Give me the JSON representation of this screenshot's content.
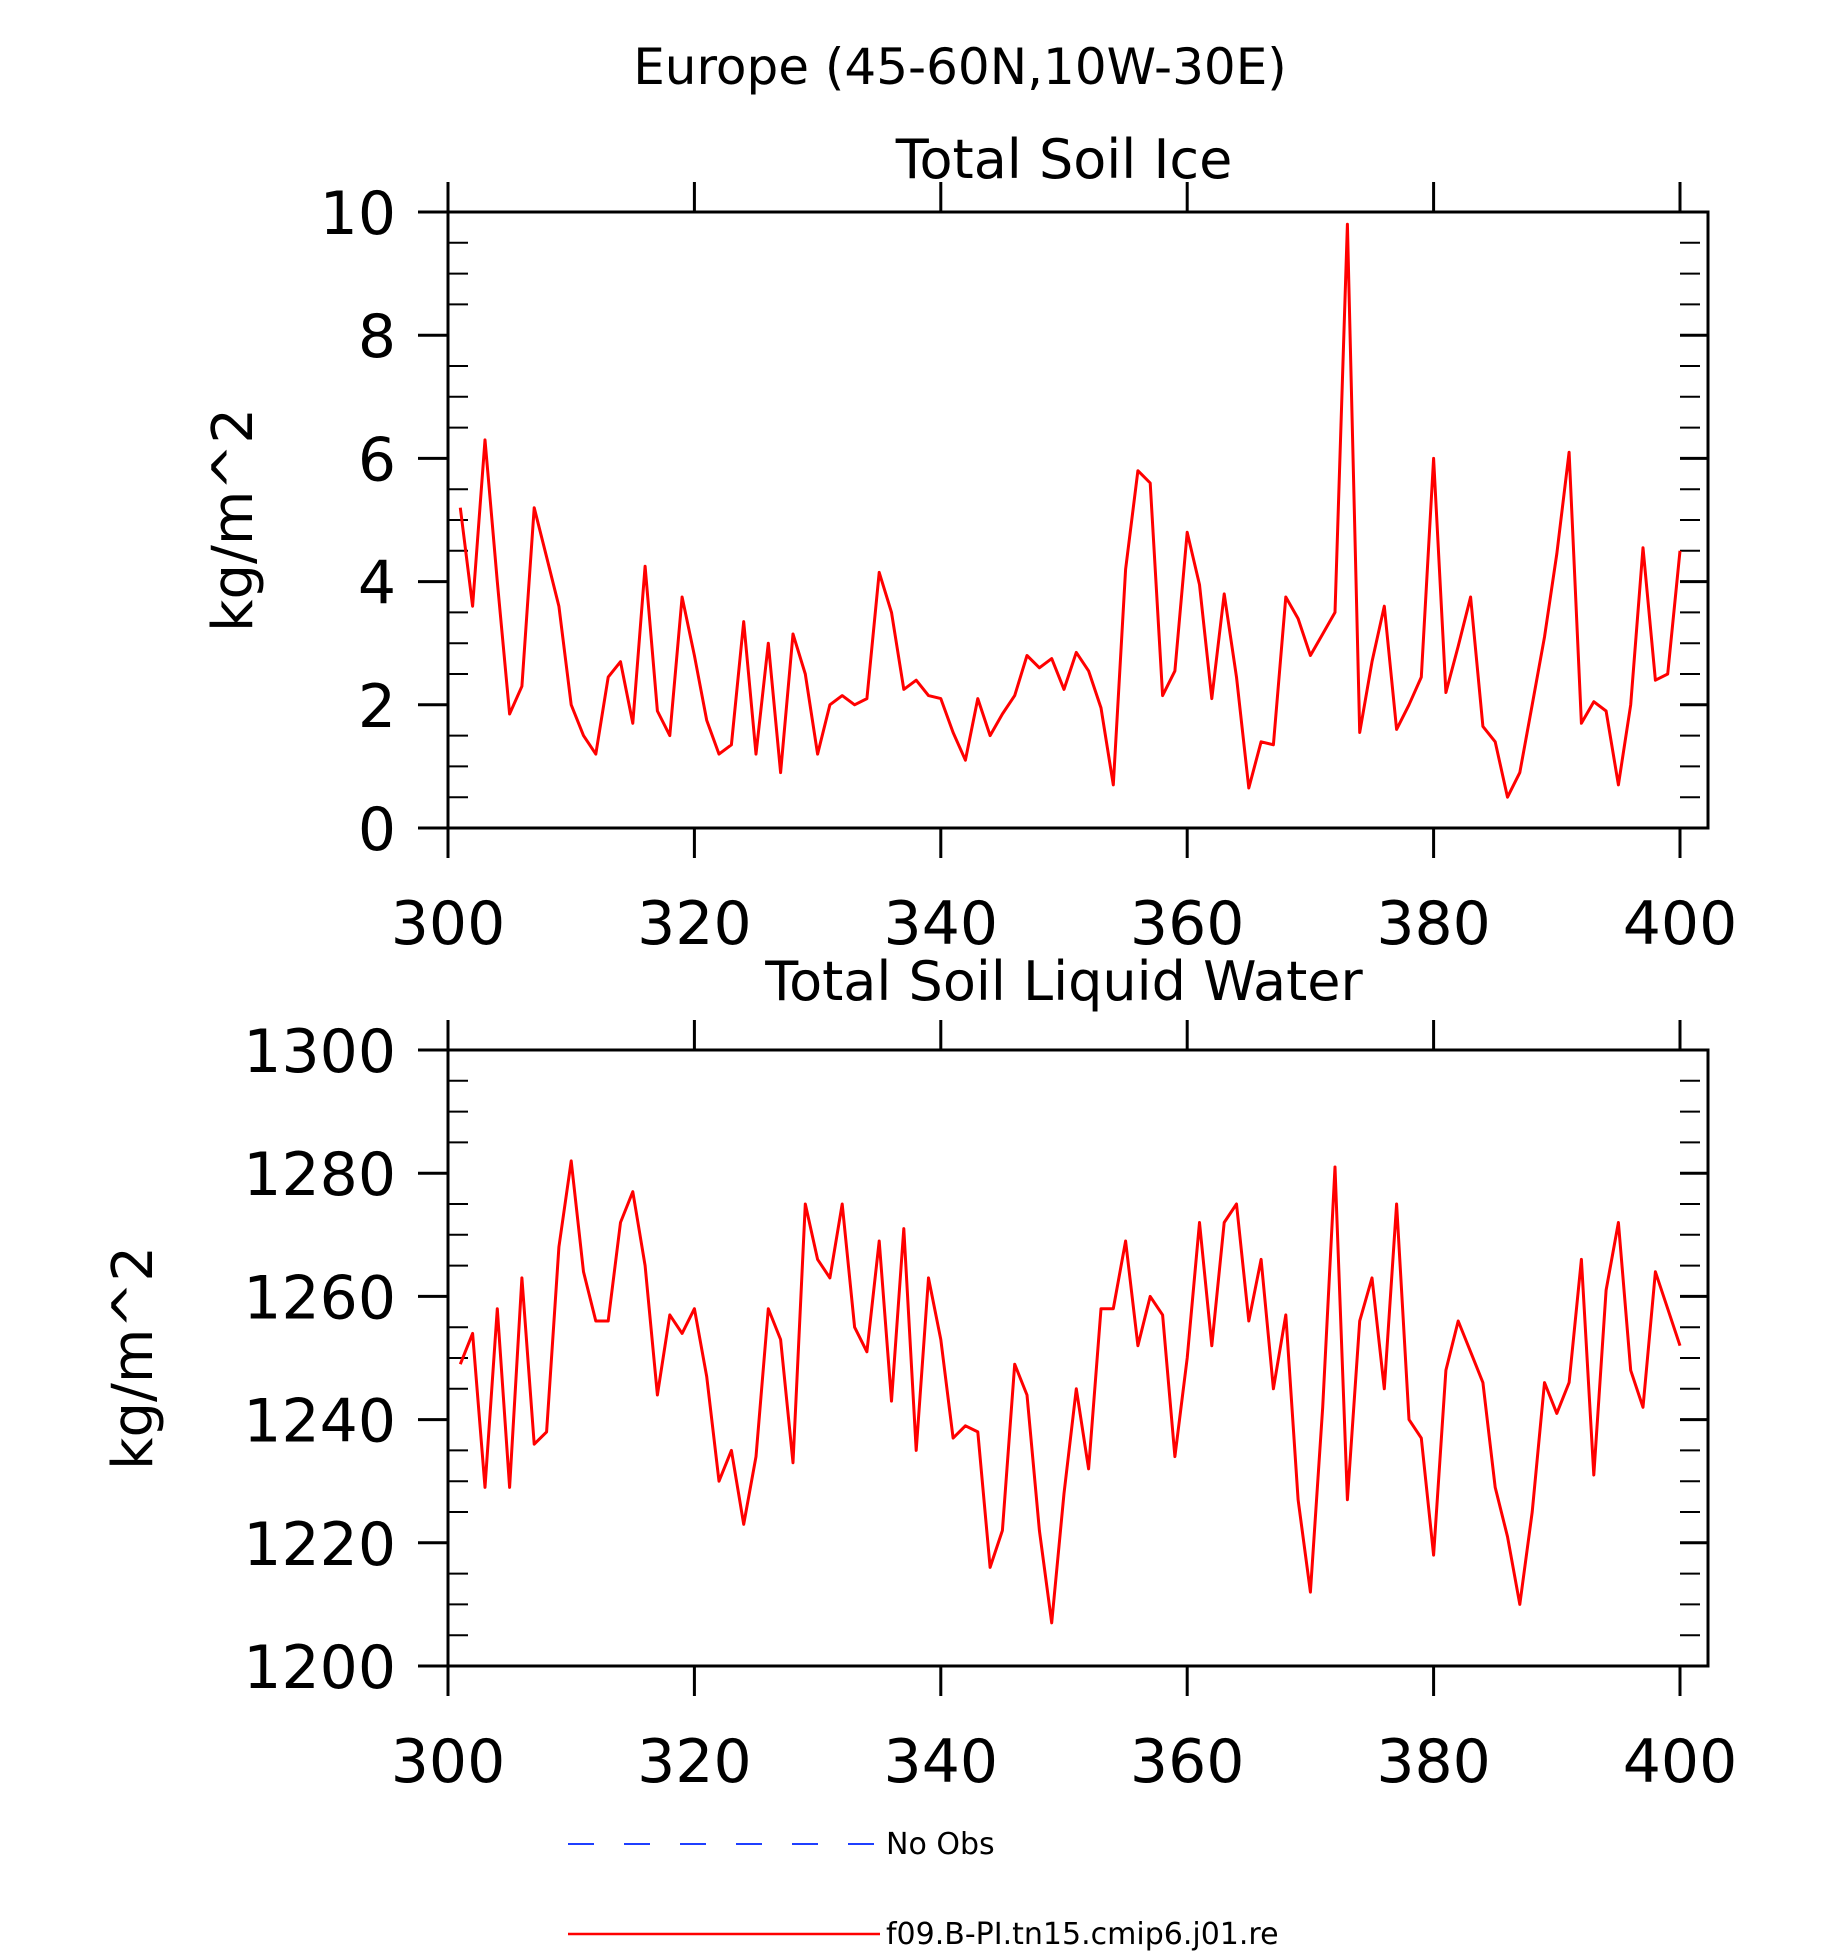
{
  "figure": {
    "title": "Europe (45-60N,10W-30E)"
  },
  "legend": [
    {
      "label": "No Obs",
      "color": "#1f3fff",
      "dash": "dashed"
    },
    {
      "label": "f09.B-PI.tn15.cmip6.j01.re",
      "color": "#ff0000",
      "dash": "solid"
    }
  ],
  "chart_data": [
    {
      "type": "line",
      "title": "Total Soil Ice",
      "xlabel": "",
      "ylabel": "kg/m^2",
      "xlim": [
        300,
        400
      ],
      "ylim": [
        0,
        10
      ],
      "xticks": [
        300,
        320,
        340,
        360,
        380,
        400
      ],
      "yticks": [
        0,
        2,
        4,
        6,
        8,
        10
      ],
      "grid": false,
      "series": [
        {
          "name": "f09.B-PI.tn15.cmip6.j01.re",
          "color": "#ff0000",
          "x": [
            301,
            302,
            303,
            304,
            305,
            306,
            307,
            308,
            309,
            310,
            311,
            312,
            313,
            314,
            315,
            316,
            317,
            318,
            319,
            320,
            321,
            322,
            323,
            324,
            325,
            326,
            327,
            328,
            329,
            330,
            331,
            332,
            333,
            334,
            335,
            336,
            337,
            338,
            339,
            340,
            341,
            342,
            343,
            344,
            345,
            346,
            347,
            348,
            349,
            350,
            351,
            352,
            353,
            354,
            355,
            356,
            357,
            358,
            359,
            360,
            361,
            362,
            363,
            364,
            365,
            366,
            367,
            368,
            369,
            370,
            371,
            372,
            373,
            374,
            375,
            376,
            377,
            378,
            379,
            380,
            381,
            382,
            383,
            384,
            385,
            386,
            387,
            388,
            389,
            390,
            391,
            392,
            393,
            394,
            395,
            396,
            397,
            398,
            399,
            400
          ],
          "y": [
            5.2,
            3.6,
            6.3,
            4.0,
            1.85,
            2.3,
            5.2,
            4.4,
            3.6,
            2.0,
            1.5,
            1.2,
            2.45,
            2.7,
            1.7,
            4.25,
            1.9,
            1.5,
            3.75,
            2.8,
            1.75,
            1.2,
            1.35,
            3.35,
            1.2,
            3.0,
            0.9,
            3.15,
            2.5,
            1.2,
            2.0,
            2.15,
            2.0,
            2.1,
            4.15,
            3.5,
            2.25,
            2.4,
            2.15,
            2.1,
            1.55,
            1.1,
            2.1,
            1.5,
            1.85,
            2.15,
            2.8,
            2.6,
            2.75,
            2.25,
            2.85,
            2.55,
            1.95,
            0.7,
            4.2,
            5.8,
            5.6,
            2.15,
            2.55,
            4.8,
            3.95,
            2.1,
            3.8,
            2.45,
            0.65,
            1.4,
            1.35,
            3.75,
            3.4,
            2.8,
            3.15,
            3.5,
            9.8,
            1.55,
            2.7,
            3.6,
            1.6,
            2.0,
            2.45,
            6.0,
            2.2,
            2.95,
            3.75,
            1.65,
            1.4,
            0.5,
            0.9,
            2.0,
            3.1,
            4.45,
            6.1,
            1.7,
            2.05,
            1.9,
            0.7,
            2.0,
            4.55,
            2.4,
            2.5,
            4.5
          ]
        }
      ]
    },
    {
      "type": "line",
      "title": "Total Soil Liquid Water",
      "xlabel": "",
      "ylabel": "kg/m^2",
      "xlim": [
        300,
        400
      ],
      "ylim": [
        1200,
        1300
      ],
      "xticks": [
        300,
        320,
        340,
        360,
        380,
        400
      ],
      "yticks": [
        1200,
        1220,
        1240,
        1260,
        1280,
        1300
      ],
      "grid": false,
      "series": [
        {
          "name": "f09.B-PI.tn15.cmip6.j01.re",
          "color": "#ff0000",
          "x": [
            301,
            302,
            303,
            304,
            305,
            306,
            307,
            308,
            309,
            310,
            311,
            312,
            313,
            314,
            315,
            316,
            317,
            318,
            319,
            320,
            321,
            322,
            323,
            324,
            325,
            326,
            327,
            328,
            329,
            330,
            331,
            332,
            333,
            334,
            335,
            336,
            337,
            338,
            339,
            340,
            341,
            342,
            343,
            344,
            345,
            346,
            347,
            348,
            349,
            350,
            351,
            352,
            353,
            354,
            355,
            356,
            357,
            358,
            359,
            360,
            361,
            362,
            363,
            364,
            365,
            366,
            367,
            368,
            369,
            370,
            371,
            372,
            373,
            374,
            375,
            376,
            377,
            378,
            379,
            380,
            381,
            382,
            383,
            384,
            385,
            386,
            387,
            388,
            389,
            390,
            391,
            392,
            393,
            394,
            395,
            396,
            397,
            398,
            399,
            400
          ],
          "y": [
            1249,
            1254,
            1229,
            1258,
            1229,
            1263,
            1236,
            1238,
            1268,
            1282,
            1264,
            1256,
            1256,
            1272,
            1277,
            1265,
            1244,
            1257,
            1254,
            1258,
            1247,
            1230,
            1235,
            1223,
            1234,
            1258,
            1253,
            1233,
            1275,
            1266,
            1263,
            1275,
            1255,
            1251,
            1269,
            1243,
            1271,
            1235,
            1263,
            1253,
            1237,
            1239,
            1238,
            1216,
            1222,
            1249,
            1244,
            1222,
            1207,
            1228,
            1245,
            1232,
            1258,
            1258,
            1269,
            1252,
            1260,
            1257,
            1234,
            1250,
            1272,
            1252,
            1272,
            1275,
            1256,
            1266,
            1245,
            1257,
            1227,
            1212,
            1242,
            1281,
            1227,
            1256,
            1263,
            1245,
            1275,
            1240,
            1237,
            1218,
            1248,
            1256,
            1251,
            1246,
            1229,
            1221,
            1210,
            1225,
            1246,
            1241,
            1246,
            1266,
            1231,
            1261,
            1272,
            1248,
            1242,
            1264,
            1258,
            1252
          ]
        }
      ]
    }
  ]
}
